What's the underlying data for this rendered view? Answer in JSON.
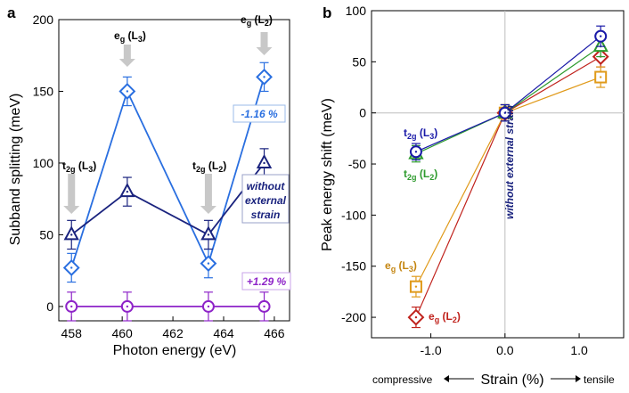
{
  "chart_data": [
    {
      "type": "line",
      "panel": "a",
      "xlabel": "Photon energy (eV)",
      "ylabel": "Subband splitting (meV)",
      "xlim": [
        457.5,
        466.6
      ],
      "ylim": [
        -10,
        200
      ],
      "xticks": [
        "458",
        "460",
        "462",
        "464",
        "466"
      ],
      "yticks": [
        "0",
        "50",
        "100",
        "150",
        "200"
      ],
      "series": [
        {
          "name": "-1.16 %",
          "color": "#2a6fe0",
          "marker": "diamond",
          "x": [
            458.0,
            460.2,
            463.4,
            465.6
          ],
          "y": [
            27,
            150,
            30,
            160
          ],
          "err": [
            10,
            10,
            10,
            10
          ]
        },
        {
          "name": "without external strain",
          "color": "#1a237e",
          "marker": "triangle",
          "x": [
            458.0,
            460.2,
            463.4,
            465.6
          ],
          "y": [
            50,
            80,
            50,
            100
          ],
          "err": [
            10,
            10,
            10,
            10
          ]
        },
        {
          "name": "+1.29 %",
          "color": "#8e24c8",
          "marker": "circle",
          "x": [
            458.0,
            460.2,
            463.4,
            465.6
          ],
          "y": [
            0,
            0,
            0,
            0
          ],
          "err": [
            10,
            10,
            10,
            10
          ]
        }
      ],
      "annotations": {
        "t2g_L3": {
          "main": "t",
          "sub": "2g",
          "tail": " (L",
          "index": "3",
          "close": ")"
        },
        "eg_L3": {
          "main": "e",
          "sub": "g",
          "tail": " (L",
          "index": "3",
          "close": ")"
        },
        "t2g_L2": {
          "main": "t",
          "sub": "2g",
          "tail": " (L",
          "index": "2",
          "close": ")"
        },
        "eg_L2": {
          "main": "e",
          "sub": "g",
          "tail": " (L",
          "index": "2",
          "close": ")"
        },
        "minus_strain": "-1.16 %",
        "plus_strain": "+1.29 %",
        "no_strain_line1": "without",
        "no_strain_line2": "external",
        "no_strain_line3": "strain"
      }
    },
    {
      "type": "line",
      "panel": "b",
      "xlabel": "Strain (%)",
      "ylabel": "Peak energy shift (meV)",
      "xlim": [
        -1.8,
        1.6
      ],
      "ylim": [
        -220,
        100
      ],
      "xticks": [
        "-1.0",
        "0.0",
        "1.0"
      ],
      "yticks": [
        "100",
        "50",
        "0",
        "-50",
        "-100",
        "-150",
        "-200"
      ],
      "series": [
        {
          "name": "t2g (L3)",
          "color": "#1a1aa8",
          "marker": "circle",
          "x": [
            -1.2,
            0.0,
            1.29
          ],
          "y": [
            -38,
            0,
            75
          ],
          "err": [
            8,
            8,
            10
          ]
        },
        {
          "name": "t2g (L2)",
          "color": "#2e9b2e",
          "marker": "triangle",
          "x": [
            -1.2,
            0.0,
            1.29
          ],
          "y": [
            -40,
            0,
            65
          ],
          "err": [
            8,
            8,
            10
          ]
        },
        {
          "name": "eg (L3)",
          "color": "#e09a1a",
          "marker": "square",
          "x": [
            -1.2,
            0.0,
            1.29
          ],
          "y": [
            -170,
            0,
            35
          ],
          "err": [
            10,
            8,
            10
          ]
        },
        {
          "name": "eg (L2)",
          "color": "#c0221c",
          "marker": "diamond",
          "x": [
            -1.2,
            0.0,
            1.29
          ],
          "y": [
            -200,
            0,
            55
          ],
          "err": [
            10,
            8,
            10
          ]
        }
      ],
      "annotations": {
        "t2g_L3": {
          "main": "t",
          "sub": "2g",
          "tail": " (L",
          "index": "3",
          "close": ")"
        },
        "t2g_L2": {
          "main": "t",
          "sub": "2g",
          "tail": " (L",
          "index": "2",
          "close": ")"
        },
        "eg_L3": {
          "main": "e",
          "sub": "g",
          "tail": " (L",
          "index": "3",
          "close": ")"
        },
        "eg_L2": {
          "main": "e",
          "sub": "g",
          "tail": " (L",
          "index": "2",
          "close": ")"
        },
        "no_strain": "without external strain",
        "compressive": "compressive",
        "tensile": "tensile"
      }
    }
  ],
  "labels": {
    "panel_a": "a",
    "panel_b": "b"
  },
  "colors": {
    "gray_arrow": "#c8c8c8",
    "zero_line": "#bdbdbd"
  }
}
